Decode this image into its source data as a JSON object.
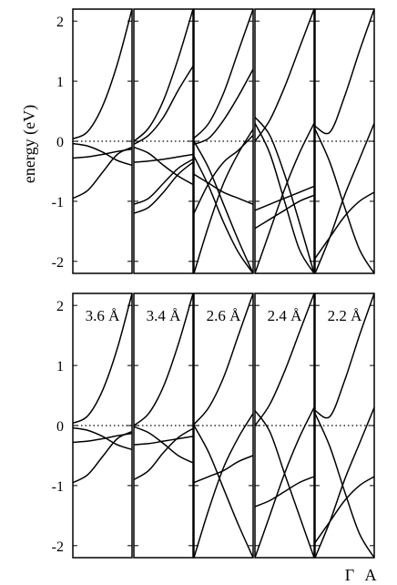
{
  "figure": {
    "ylabel": "energy (eV)",
    "xlabels": [
      "Γ",
      "A"
    ]
  },
  "chart_data": [
    {
      "type": "line",
      "row": "top",
      "ylabel": "energy (eV)",
      "ylim": [
        -2.2,
        2.2
      ],
      "yticks": [
        2,
        1,
        0,
        -1,
        -2
      ],
      "xlim": [
        0,
        1
      ],
      "fermi_level": 0,
      "panels": [
        {
          "label": "",
          "series": [
            {
              "x": [
                0,
                0.25,
                0.5,
                0.75,
                1.0
              ],
              "y": [
                0.04,
                0.16,
                0.58,
                1.28,
                2.2
              ]
            },
            {
              "x": [
                0,
                0.25,
                0.5,
                0.75,
                1.0
              ],
              "y": [
                -0.28,
                -0.26,
                -0.22,
                -0.17,
                -0.13
              ]
            },
            {
              "x": [
                0,
                0.25,
                0.5,
                0.75,
                1.0
              ],
              "y": [
                -0.04,
                -0.08,
                -0.18,
                -0.32,
                -0.4
              ]
            },
            {
              "x": [
                0,
                0.25,
                0.5,
                0.75,
                1.0
              ],
              "y": [
                -0.95,
                -0.82,
                -0.52,
                -0.22,
                -0.1
              ]
            }
          ]
        },
        {
          "label": "",
          "series": [
            {
              "x": [
                0,
                0.25,
                0.5,
                0.75,
                1.0
              ],
              "y": [
                0.0,
                0.22,
                0.68,
                1.38,
                2.2
              ]
            },
            {
              "x": [
                0,
                0.25,
                0.5,
                0.75,
                1.0
              ],
              "y": [
                -0.05,
                0.1,
                0.4,
                0.85,
                1.25
              ]
            },
            {
              "x": [
                0,
                0.25,
                0.5,
                0.75,
                1.0
              ],
              "y": [
                -0.1,
                -0.2,
                -0.4,
                -0.58,
                -0.72
              ]
            },
            {
              "x": [
                0,
                0.25,
                0.5,
                0.75,
                1.0
              ],
              "y": [
                -0.35,
                -0.33,
                -0.3,
                -0.26,
                -0.22
              ]
            },
            {
              "x": [
                0,
                0.25,
                0.5,
                0.75,
                1.0
              ],
              "y": [
                -1.05,
                -0.95,
                -0.7,
                -0.45,
                -0.3
              ]
            },
            {
              "x": [
                0,
                0.25,
                0.5,
                0.75,
                1.0
              ],
              "y": [
                -1.2,
                -1.1,
                -0.85,
                -0.55,
                -0.35
              ]
            }
          ]
        },
        {
          "label": "",
          "series": [
            {
              "x": [
                0,
                0.25,
                0.5,
                0.75,
                1.0
              ],
              "y": [
                0.05,
                0.3,
                0.8,
                1.5,
                2.2
              ]
            },
            {
              "x": [
                0,
                0.25,
                0.5,
                0.75,
                1.0
              ],
              "y": [
                -0.05,
                0.05,
                0.35,
                0.75,
                1.2
              ]
            },
            {
              "x": [
                0,
                0.25,
                0.5,
                0.75,
                1.0
              ],
              "y": [
                0.0,
                -0.45,
                -1.05,
                -1.65,
                -2.2
              ]
            },
            {
              "x": [
                0,
                0.25,
                0.5,
                0.75,
                1.0
              ],
              "y": [
                -0.25,
                -0.75,
                -1.35,
                -1.85,
                -2.2
              ]
            },
            {
              "x": [
                0,
                0.25,
                0.5,
                0.75,
                1.0
              ],
              "y": [
                -1.2,
                -0.7,
                -0.35,
                -0.15,
                0.1
              ]
            },
            {
              "x": [
                0,
                0.25,
                0.5,
                0.75,
                1.0
              ],
              "y": [
                -2.2,
                -1.4,
                -0.7,
                -0.2,
                0.2
              ]
            },
            {
              "x": [
                0,
                0.25,
                0.5,
                0.75,
                1.0
              ],
              "y": [
                -0.55,
                -0.7,
                -0.85,
                -0.95,
                -1.05
              ]
            }
          ]
        },
        {
          "label": "",
          "series": [
            {
              "x": [
                0,
                0.25,
                0.5,
                0.75,
                1.0
              ],
              "y": [
                0.0,
                0.35,
                0.9,
                1.55,
                2.2
              ]
            },
            {
              "x": [
                0,
                0.25,
                0.5,
                0.75,
                1.0
              ],
              "y": [
                0.4,
                0.1,
                -0.55,
                -1.35,
                -2.2
              ]
            },
            {
              "x": [
                0,
                0.25,
                0.5,
                0.75,
                1.0
              ],
              "y": [
                0.3,
                -0.2,
                -1.0,
                -1.8,
                -2.2
              ]
            },
            {
              "x": [
                0,
                0.25,
                0.5,
                0.75,
                1.0
              ],
              "y": [
                -2.2,
                -1.5,
                -0.8,
                -0.2,
                0.3
              ]
            },
            {
              "x": [
                0,
                0.25,
                0.5,
                0.75,
                1.0
              ],
              "y": [
                -1.15,
                -1.05,
                -0.95,
                -0.85,
                -0.75
              ]
            },
            {
              "x": [
                0,
                0.25,
                0.5,
                0.75,
                1.0
              ],
              "y": [
                -1.45,
                -1.3,
                -1.15,
                -1.0,
                -0.9
              ]
            }
          ]
        },
        {
          "label": "",
          "series": [
            {
              "x": [
                0,
                0.25,
                0.5,
                0.75,
                1.0
              ],
              "y": [
                0.25,
                0.15,
                0.75,
                1.5,
                2.2
              ]
            },
            {
              "x": [
                0,
                0.25,
                0.5,
                0.75,
                1.0
              ],
              "y": [
                0.2,
                -0.35,
                -1.1,
                -1.8,
                -2.2
              ]
            },
            {
              "x": [
                0,
                0.25,
                0.5,
                0.75,
                1.0
              ],
              "y": [
                -2.2,
                -1.6,
                -0.9,
                -0.3,
                0.3
              ]
            },
            {
              "x": [
                0,
                0.25,
                0.5,
                0.75,
                1.0
              ],
              "y": [
                -1.95,
                -1.6,
                -1.25,
                -1.0,
                -0.85
              ]
            }
          ]
        }
      ]
    },
    {
      "type": "line",
      "row": "bottom",
      "ylabel": "",
      "ylim": [
        -2.2,
        2.2
      ],
      "yticks": [
        2,
        1,
        0,
        -1,
        -2
      ],
      "xlim": [
        0,
        1
      ],
      "xticklabels": [
        "Γ",
        "A"
      ],
      "fermi_level": 0,
      "panels": [
        {
          "label": "3.6 Å",
          "series": [
            {
              "x": [
                0,
                0.25,
                0.5,
                0.75,
                1.0
              ],
              "y": [
                0.04,
                0.16,
                0.58,
                1.28,
                2.2
              ]
            },
            {
              "x": [
                0,
                0.25,
                0.5,
                0.75,
                1.0
              ],
              "y": [
                -0.28,
                -0.26,
                -0.22,
                -0.17,
                -0.13
              ]
            },
            {
              "x": [
                0,
                0.25,
                0.5,
                0.75,
                1.0
              ],
              "y": [
                -0.04,
                -0.08,
                -0.18,
                -0.32,
                -0.4
              ]
            },
            {
              "x": [
                0,
                0.25,
                0.5,
                0.75,
                1.0
              ],
              "y": [
                -0.95,
                -0.82,
                -0.52,
                -0.22,
                -0.1
              ]
            }
          ]
        },
        {
          "label": "3.4 Å",
          "series": [
            {
              "x": [
                0,
                0.25,
                0.5,
                0.75,
                1.0
              ],
              "y": [
                0.0,
                0.2,
                0.65,
                1.35,
                2.2
              ]
            },
            {
              "x": [
                0,
                0.25,
                0.5,
                0.75,
                1.0
              ],
              "y": [
                -0.32,
                -0.3,
                -0.26,
                -0.22,
                -0.18
              ]
            },
            {
              "x": [
                0,
                0.25,
                0.5,
                0.75,
                1.0
              ],
              "y": [
                -0.02,
                -0.12,
                -0.3,
                -0.5,
                -0.62
              ]
            },
            {
              "x": [
                0,
                0.25,
                0.5,
                0.75,
                1.0
              ],
              "y": [
                -0.9,
                -0.75,
                -0.45,
                -0.2,
                -0.05
              ]
            }
          ]
        },
        {
          "label": "2.6 Å",
          "series": [
            {
              "x": [
                0,
                0.25,
                0.5,
                0.75,
                1.0
              ],
              "y": [
                0.02,
                0.3,
                0.8,
                1.5,
                2.2
              ]
            },
            {
              "x": [
                0,
                0.25,
                0.5,
                0.75,
                1.0
              ],
              "y": [
                0.0,
                -0.45,
                -1.05,
                -1.65,
                -2.2
              ]
            },
            {
              "x": [
                0,
                0.25,
                0.5,
                0.75,
                1.0
              ],
              "y": [
                -2.2,
                -1.4,
                -0.7,
                -0.2,
                0.2
              ]
            },
            {
              "x": [
                0,
                0.25,
                0.5,
                0.75,
                1.0
              ],
              "y": [
                -0.95,
                -0.85,
                -0.75,
                -0.6,
                -0.5
              ]
            }
          ]
        },
        {
          "label": "2.4 Å",
          "series": [
            {
              "x": [
                0,
                0.25,
                0.5,
                0.75,
                1.0
              ],
              "y": [
                0.0,
                0.35,
                0.9,
                1.55,
                2.2
              ]
            },
            {
              "x": [
                0,
                0.25,
                0.5,
                0.75,
                1.0
              ],
              "y": [
                0.25,
                -0.1,
                -0.8,
                -1.5,
                -2.2
              ]
            },
            {
              "x": [
                0,
                0.25,
                0.5,
                0.75,
                1.0
              ],
              "y": [
                -2.2,
                -1.5,
                -0.8,
                -0.2,
                0.3
              ]
            },
            {
              "x": [
                0,
                0.25,
                0.5,
                0.75,
                1.0
              ],
              "y": [
                -1.35,
                -1.25,
                -1.1,
                -0.95,
                -0.85
              ]
            }
          ]
        },
        {
          "label": "2.2 Å",
          "series": [
            {
              "x": [
                0,
                0.25,
                0.5,
                0.75,
                1.0
              ],
              "y": [
                0.25,
                0.15,
                0.75,
                1.5,
                2.2
              ]
            },
            {
              "x": [
                0,
                0.25,
                0.5,
                0.75,
                1.0
              ],
              "y": [
                0.2,
                -0.35,
                -1.1,
                -1.8,
                -2.2
              ]
            },
            {
              "x": [
                0,
                0.25,
                0.5,
                0.75,
                1.0
              ],
              "y": [
                -2.2,
                -1.6,
                -0.9,
                -0.3,
                0.3
              ]
            },
            {
              "x": [
                0,
                0.25,
                0.5,
                0.75,
                1.0
              ],
              "y": [
                -1.95,
                -1.6,
                -1.25,
                -1.0,
                -0.85
              ]
            }
          ]
        }
      ]
    }
  ]
}
